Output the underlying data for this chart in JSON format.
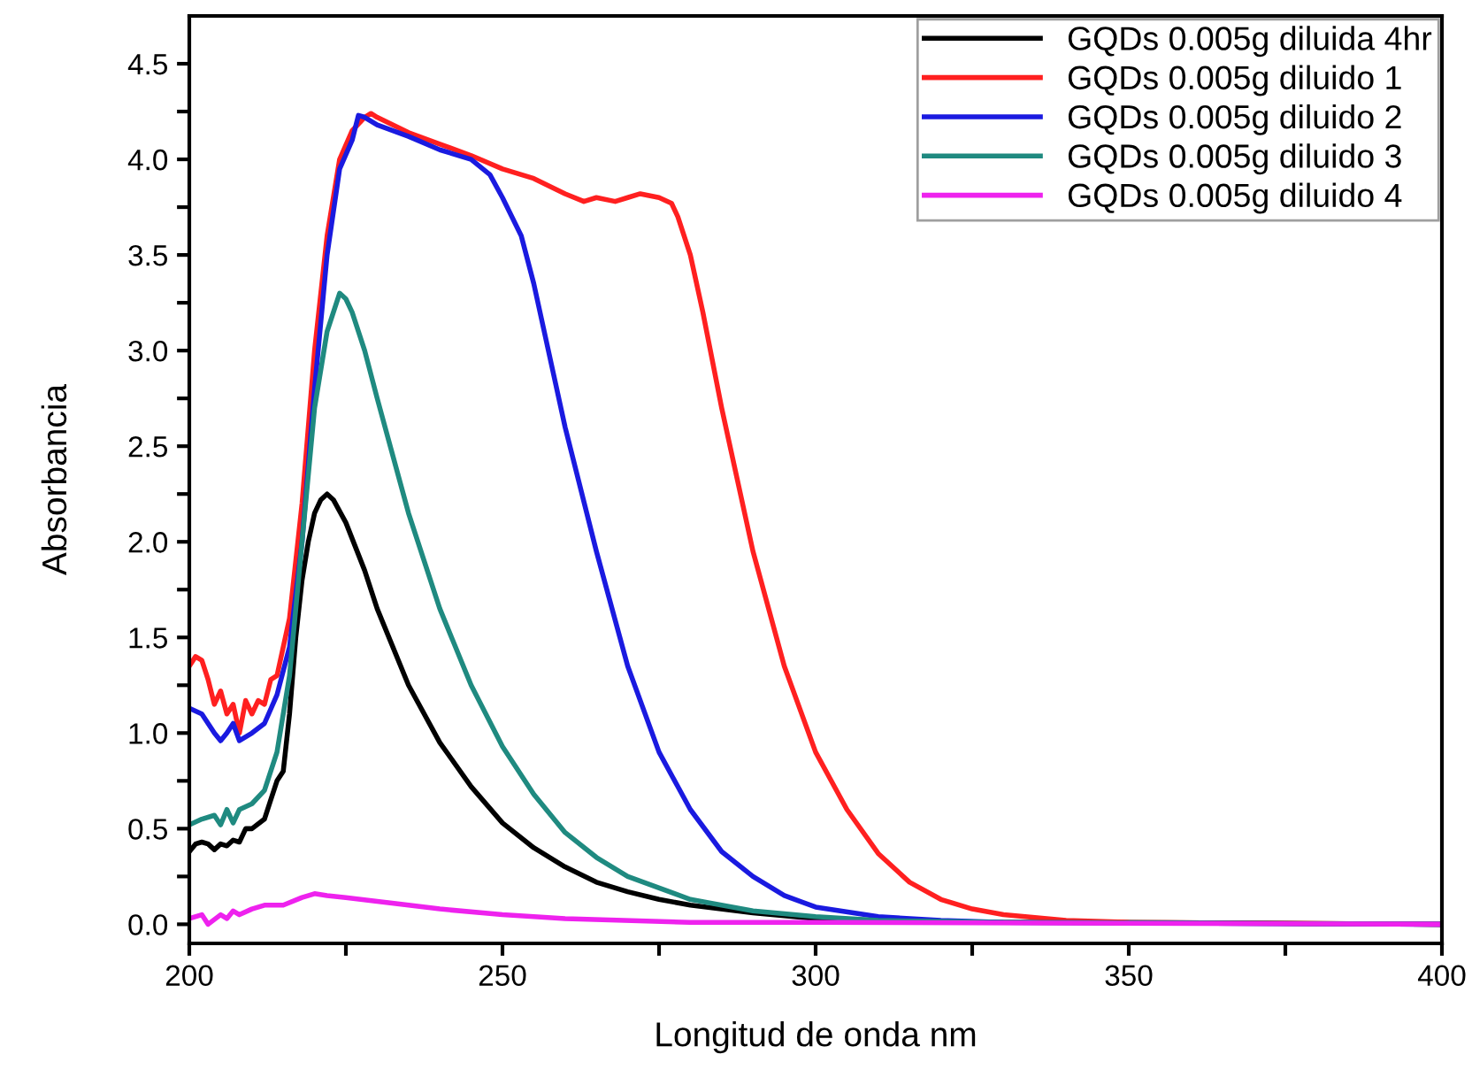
{
  "chart_data": {
    "type": "line",
    "xlabel": "Longitud de onda nm",
    "ylabel": "Absorbancia",
    "xlim": [
      200,
      400
    ],
    "ylim": [
      -0.1,
      4.75
    ],
    "xticks": [
      200,
      {
        "value": 225,
        "label": null
      },
      250,
      {
        "value": 275,
        "label": null
      },
      300,
      {
        "value": 325,
        "label": null
      },
      350,
      {
        "value": 375,
        "label": null
      },
      400
    ],
    "yticks": [
      {
        "value": 0,
        "label": "0.0"
      },
      {
        "value": 0.25,
        "label": null
      },
      0.5,
      {
        "value": 0.75,
        "label": null
      },
      {
        "value": 1,
        "label": "1.0"
      },
      {
        "value": 1.25,
        "label": null
      },
      1.5,
      {
        "value": 1.75,
        "label": null
      },
      {
        "value": 2,
        "label": "2.0"
      },
      {
        "value": 2.25,
        "label": null
      },
      2.5,
      {
        "value": 2.75,
        "label": null
      },
      {
        "value": 3,
        "label": "3.0"
      },
      {
        "value": 3.25,
        "label": null
      },
      3.5,
      {
        "value": 3.75,
        "label": null
      },
      {
        "value": 4,
        "label": "4.0"
      },
      {
        "value": 4.25,
        "label": null
      },
      4.5
    ],
    "grid": false,
    "legend": "top right",
    "marker": "none",
    "line_style": "solid",
    "series": [
      {
        "name": "GQDs 0.005g diluida 4hr",
        "color": "#000000",
        "x": [
          200,
          201,
          202,
          203,
          204,
          205,
          206,
          207,
          208,
          209,
          210,
          212,
          213,
          214,
          215,
          216,
          217,
          218,
          219,
          220,
          221,
          222,
          223,
          225,
          228,
          230,
          235,
          240,
          245,
          250,
          255,
          260,
          265,
          270,
          275,
          280,
          290,
          300,
          320,
          350,
          400
        ],
        "values": [
          0.38,
          0.42,
          0.43,
          0.42,
          0.39,
          0.42,
          0.41,
          0.44,
          0.43,
          0.5,
          0.5,
          0.55,
          0.65,
          0.75,
          0.8,
          1.1,
          1.5,
          1.8,
          2.0,
          2.15,
          2.22,
          2.25,
          2.22,
          2.1,
          1.85,
          1.65,
          1.25,
          0.95,
          0.72,
          0.53,
          0.4,
          0.3,
          0.22,
          0.17,
          0.13,
          0.1,
          0.06,
          0.03,
          0.01,
          0.01,
          0.0
        ]
      },
      {
        "name": "GQDs 0.005g diluido 1",
        "color": "#ff2020",
        "x": [
          200,
          201,
          202,
          203,
          204,
          205,
          206,
          207,
          208,
          209,
          210,
          211,
          212,
          213,
          214,
          216,
          218,
          220,
          222,
          224,
          226,
          228,
          229,
          230,
          235,
          240,
          245,
          250,
          255,
          260,
          263,
          265,
          268,
          270,
          272,
          275,
          277,
          278,
          280,
          282,
          285,
          290,
          295,
          300,
          305,
          310,
          315,
          320,
          325,
          330,
          340,
          350,
          400
        ],
        "values": [
          1.35,
          1.4,
          1.38,
          1.28,
          1.15,
          1.22,
          1.1,
          1.15,
          1.0,
          1.17,
          1.1,
          1.17,
          1.15,
          1.28,
          1.3,
          1.6,
          2.2,
          3.0,
          3.6,
          4.0,
          4.15,
          4.22,
          4.24,
          4.22,
          4.14,
          4.08,
          4.02,
          3.95,
          3.9,
          3.82,
          3.78,
          3.8,
          3.78,
          3.8,
          3.82,
          3.8,
          3.77,
          3.7,
          3.5,
          3.2,
          2.7,
          1.95,
          1.35,
          0.9,
          0.6,
          0.37,
          0.22,
          0.13,
          0.08,
          0.05,
          0.02,
          0.01,
          0.0
        ]
      },
      {
        "name": "GQDs 0.005g diluido 2",
        "color": "#1a1ae0",
        "x": [
          200,
          202,
          204,
          205,
          206,
          207,
          208,
          210,
          212,
          214,
          216,
          218,
          220,
          222,
          224,
          226,
          227,
          228,
          230,
          235,
          240,
          245,
          248,
          250,
          253,
          255,
          258,
          260,
          265,
          270,
          275,
          280,
          285,
          290,
          295,
          300,
          310,
          320,
          330,
          400
        ],
        "values": [
          1.13,
          1.1,
          1.0,
          0.96,
          1.0,
          1.05,
          0.96,
          1.0,
          1.05,
          1.2,
          1.45,
          2.0,
          2.8,
          3.5,
          3.95,
          4.1,
          4.23,
          4.22,
          4.18,
          4.12,
          4.05,
          4.0,
          3.92,
          3.8,
          3.6,
          3.35,
          2.9,
          2.6,
          1.95,
          1.35,
          0.9,
          0.6,
          0.38,
          0.25,
          0.15,
          0.09,
          0.04,
          0.02,
          0.01,
          0.0
        ]
      },
      {
        "name": "GQDs 0.005g diluido 3",
        "color": "#1f8a80",
        "x": [
          200,
          202,
          204,
          205,
          206,
          207,
          208,
          210,
          212,
          214,
          216,
          218,
          220,
          222,
          224,
          225,
          226,
          228,
          230,
          235,
          240,
          245,
          250,
          255,
          260,
          265,
          270,
          280,
          290,
          300,
          310,
          330,
          400
        ],
        "values": [
          0.52,
          0.55,
          0.57,
          0.52,
          0.6,
          0.53,
          0.6,
          0.63,
          0.7,
          0.9,
          1.3,
          2.0,
          2.7,
          3.1,
          3.3,
          3.27,
          3.2,
          3.0,
          2.75,
          2.15,
          1.65,
          1.25,
          0.93,
          0.68,
          0.48,
          0.35,
          0.25,
          0.13,
          0.07,
          0.04,
          0.02,
          0.01,
          0.0
        ]
      },
      {
        "name": "GQDs 0.005g diluido 4",
        "color": "#ee22ee",
        "x": [
          200,
          202,
          203,
          205,
          206,
          207,
          208,
          210,
          212,
          215,
          218,
          220,
          222,
          225,
          230,
          240,
          250,
          260,
          280,
          300,
          400
        ],
        "values": [
          0.03,
          0.05,
          0.0,
          0.05,
          0.03,
          0.07,
          0.05,
          0.08,
          0.1,
          0.1,
          0.14,
          0.16,
          0.15,
          0.14,
          0.12,
          0.08,
          0.05,
          0.03,
          0.01,
          0.01,
          0.0
        ]
      }
    ]
  }
}
